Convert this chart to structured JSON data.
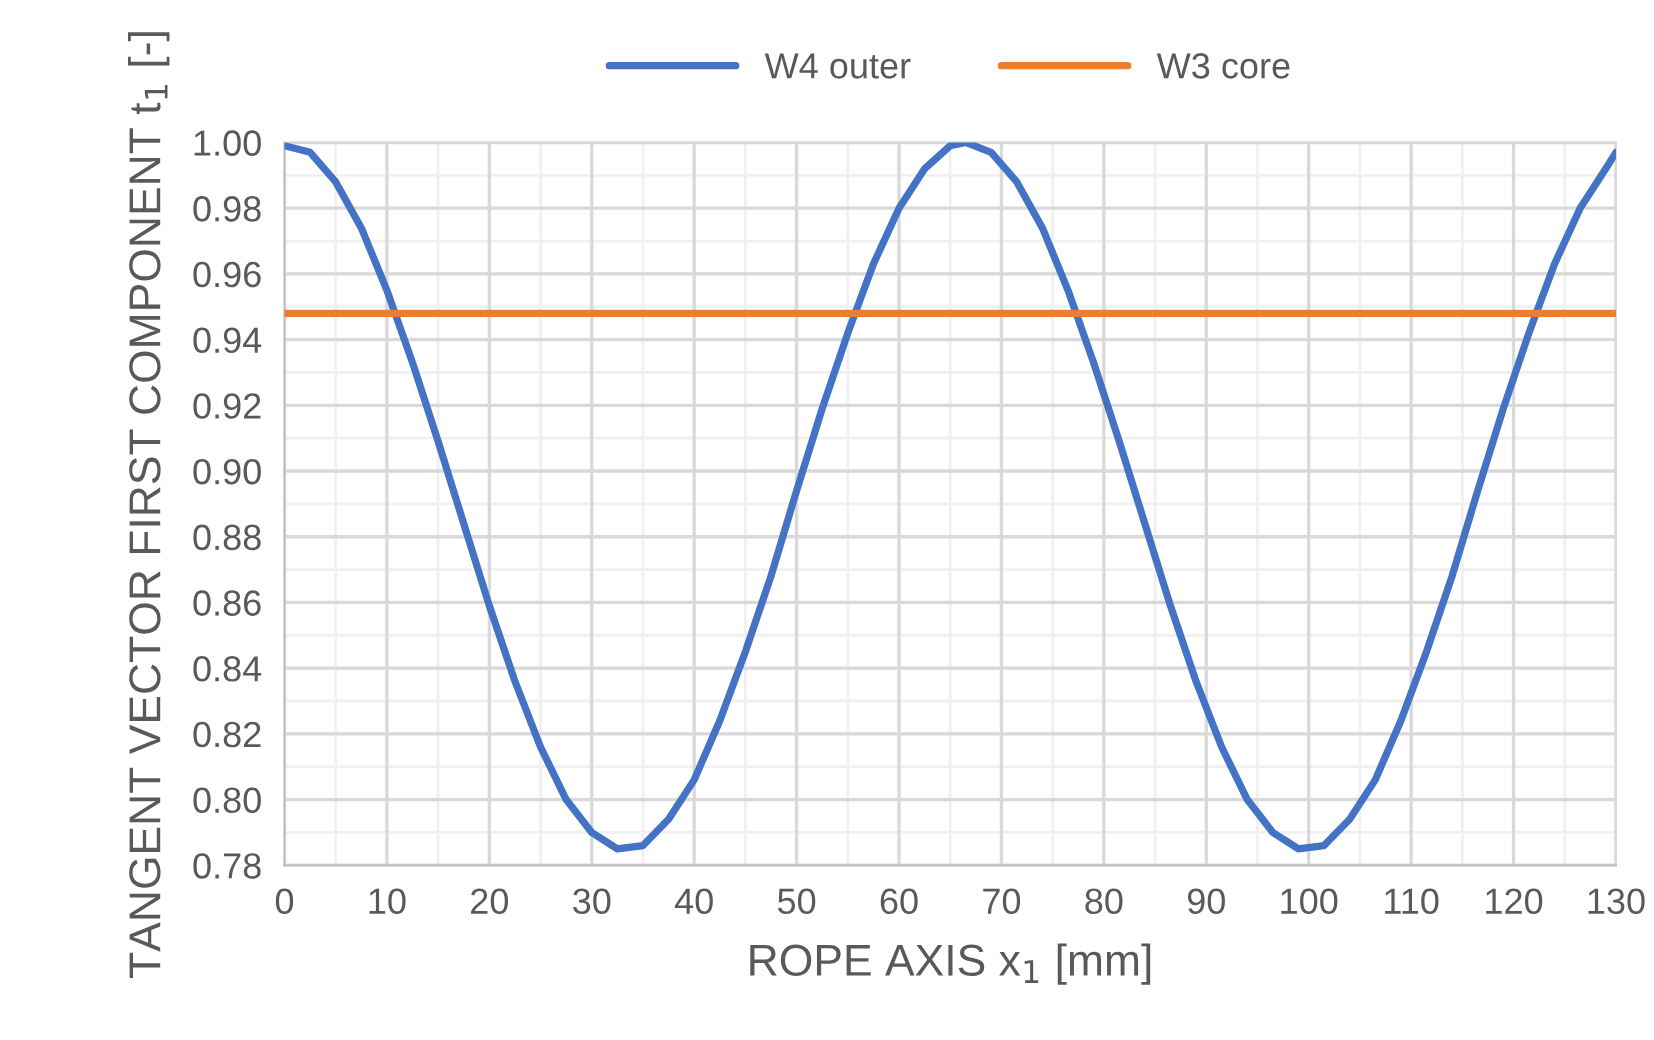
{
  "chart_data": {
    "type": "line",
    "xlabel": "ROPE AXIS x$_{1}$ [mm]",
    "ylabel": "TANGENT VECTOR FIRST COMPONENT t$_{1}$ [-]",
    "series": [
      {
        "name": "W4 outer",
        "color": "#4472c4",
        "x": [
          0,
          2.5,
          5,
          7.5,
          10,
          12.5,
          15,
          17.5,
          20,
          22.5,
          25,
          27.5,
          30,
          32.5,
          35,
          37.5,
          40,
          42.5,
          45,
          47.5,
          50,
          52.5,
          55,
          57.5,
          60,
          62.5,
          65,
          66.5,
          69,
          71.5,
          74,
          76.5,
          79,
          81.5,
          84,
          86.5,
          89,
          91.5,
          94,
          96.5,
          99,
          101.5,
          104,
          106.5,
          109,
          111.5,
          114,
          116.5,
          119,
          121.5,
          124,
          126.5,
          129,
          130
        ],
        "values": [
          0.999,
          0.997,
          0.988,
          0.974,
          0.955,
          0.933,
          0.909,
          0.884,
          0.859,
          0.836,
          0.816,
          0.8,
          0.79,
          0.785,
          0.786,
          0.794,
          0.806,
          0.824,
          0.845,
          0.868,
          0.894,
          0.919,
          0.942,
          0.963,
          0.98,
          0.992,
          0.999,
          1.0,
          0.997,
          0.988,
          0.974,
          0.955,
          0.933,
          0.909,
          0.884,
          0.859,
          0.836,
          0.816,
          0.8,
          0.79,
          0.785,
          0.786,
          0.794,
          0.806,
          0.824,
          0.845,
          0.868,
          0.894,
          0.919,
          0.942,
          0.963,
          0.98,
          0.992,
          0.997
        ]
      },
      {
        "name": "W3 core",
        "color": "#ed7d31",
        "x": [
          0,
          130
        ],
        "values": [
          0.948,
          0.948
        ]
      }
    ],
    "xlim": [
      0,
      130
    ],
    "xticks": [
      0,
      10,
      20,
      30,
      40,
      50,
      60,
      70,
      80,
      90,
      100,
      110,
      120,
      130
    ],
    "ylim": [
      0.78,
      1.0
    ],
    "yticks": [
      {
        "value": 0.78,
        "label": "0.78"
      },
      {
        "value": 0.8,
        "label": "0.80"
      },
      {
        "value": 0.82,
        "label": "0.82"
      },
      {
        "value": 0.84,
        "label": "0.84"
      },
      {
        "value": 0.86,
        "label": "0.86"
      },
      {
        "value": 0.88,
        "label": "0.88"
      },
      {
        "value": 0.9,
        "label": "0.90"
      },
      {
        "value": 0.92,
        "label": "0.92"
      },
      {
        "value": 0.94,
        "label": "0.94"
      },
      {
        "value": 0.96,
        "label": "0.96"
      },
      {
        "value": 0.98,
        "label": "0.98"
      },
      {
        "value": 1.0,
        "label": "1.00"
      }
    ],
    "grid": true,
    "legend": "top",
    "marker": "none",
    "line_style": "solid"
  }
}
